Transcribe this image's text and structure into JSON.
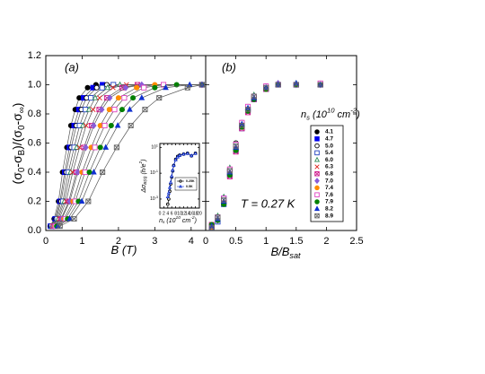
{
  "chart_data": [
    {
      "type": "line",
      "panel_label": "(a)",
      "x_label": [
        "B (T)"
      ],
      "y_label": [
        "(σ",
        {
          "sub": "0"
        },
        "-σ",
        {
          "sub": "B"
        },
        ")/(σ",
        {
          "sub": "0"
        },
        "-σ",
        {
          "sub": "∞"
        },
        ")"
      ],
      "xlim": [
        0,
        4.4
      ],
      "xticks": [
        0,
        1,
        2,
        3,
        4
      ],
      "ylim": [
        0,
        1.2
      ],
      "yticks": [
        {
          "value": 0,
          "label": "0.0"
        },
        0.2,
        0.4,
        0.6,
        0.8,
        {
          "value": 1,
          "label": "1.0"
        },
        1.2
      ],
      "series": [
        {
          "name": "4.1",
          "color": "#000000",
          "marker": "filled-circle",
          "x": [
            0.12,
            0.23,
            0.35,
            0.46,
            0.58,
            0.69,
            0.81,
            0.92,
            1.15,
            1.38,
            4.3
          ],
          "values": [
            0.03,
            0.08,
            0.2,
            0.4,
            0.57,
            0.72,
            0.83,
            0.91,
            0.98,
            1.0,
            1.0
          ]
        },
        {
          "name": "4.7",
          "color": "#0000ee",
          "marker": "filled-square",
          "x": [
            0.13,
            0.26,
            0.39,
            0.52,
            0.65,
            0.78,
            0.91,
            1.04,
            1.3,
            1.56,
            4.3
          ],
          "values": [
            0.03,
            0.08,
            0.2,
            0.4,
            0.57,
            0.72,
            0.83,
            0.91,
            0.98,
            1.0,
            1.0
          ]
        },
        {
          "name": "5.0",
          "color": "#000000",
          "marker": "open-circle",
          "x": [
            0.14,
            0.28,
            0.42,
            0.56,
            0.7,
            0.84,
            0.98,
            1.12,
            1.4,
            1.68,
            4.3
          ],
          "values": [
            0.03,
            0.08,
            0.2,
            0.4,
            0.57,
            0.72,
            0.83,
            0.91,
            0.98,
            1.0,
            1.0
          ]
        },
        {
          "name": "5.4",
          "color": "#1f3fbf",
          "marker": "open-square",
          "x": [
            0.16,
            0.31,
            0.47,
            0.62,
            0.78,
            0.93,
            1.09,
            1.24,
            1.55,
            1.86,
            4.3
          ],
          "values": [
            0.03,
            0.08,
            0.2,
            0.4,
            0.57,
            0.72,
            0.83,
            0.91,
            0.98,
            1.0,
            1.0
          ]
        },
        {
          "name": "6.0",
          "color": "#2e8b57",
          "marker": "open-triangle",
          "x": [
            0.17,
            0.34,
            0.51,
            0.68,
            0.85,
            1.02,
            1.19,
            1.36,
            1.7,
            2.04,
            4.3
          ],
          "values": [
            0.03,
            0.08,
            0.2,
            0.4,
            0.57,
            0.72,
            0.83,
            0.91,
            0.98,
            1.0,
            1.0
          ]
        },
        {
          "name": "6.3",
          "color": "#e0201b",
          "marker": "cross",
          "x": [
            0.19,
            0.37,
            0.56,
            0.74,
            0.93,
            1.11,
            1.3,
            1.48,
            1.85,
            2.22,
            4.3
          ],
          "values": [
            0.03,
            0.08,
            0.2,
            0.4,
            0.57,
            0.72,
            0.83,
            0.91,
            0.98,
            1.0,
            1.0
          ]
        },
        {
          "name": "6.8",
          "color": "#d0208f",
          "marker": "crossed-square",
          "x": [
            0.21,
            0.42,
            0.63,
            0.84,
            1.05,
            1.26,
            1.47,
            1.68,
            2.1,
            2.52,
            4.3
          ],
          "values": [
            0.03,
            0.08,
            0.2,
            0.4,
            0.57,
            0.72,
            0.83,
            0.91,
            0.98,
            1.0,
            1.0
          ]
        },
        {
          "name": "7.0",
          "color": "#8a5cd8",
          "marker": "diamond",
          "x": [
            0.22,
            0.44,
            0.66,
            0.88,
            1.1,
            1.32,
            1.54,
            1.76,
            2.2,
            2.64,
            4.3
          ],
          "values": [
            0.03,
            0.08,
            0.2,
            0.4,
            0.57,
            0.72,
            0.83,
            0.91,
            0.98,
            1.0,
            1.0
          ]
        },
        {
          "name": "7.4",
          "color": "#ff8c00",
          "marker": "filled-circle",
          "x": [
            0.25,
            0.5,
            0.75,
            1.0,
            1.25,
            1.5,
            1.75,
            2.0,
            2.5,
            3.0,
            4.3
          ],
          "values": [
            0.03,
            0.08,
            0.2,
            0.4,
            0.57,
            0.72,
            0.83,
            0.91,
            0.98,
            1.0,
            1.0
          ]
        },
        {
          "name": "7.6",
          "color": "#e040c0",
          "marker": "open-square",
          "x": [
            0.27,
            0.54,
            0.81,
            1.08,
            1.35,
            1.62,
            1.89,
            2.16,
            2.7,
            3.24,
            4.3
          ],
          "values": [
            0.03,
            0.08,
            0.2,
            0.4,
            0.57,
            0.72,
            0.83,
            0.91,
            0.98,
            1.0,
            1.0
          ]
        },
        {
          "name": "7.9",
          "color": "#008000",
          "marker": "filled-circle",
          "x": [
            0.3,
            0.6,
            0.9,
            1.2,
            1.5,
            1.8,
            2.1,
            2.4,
            3.0,
            3.6,
            4.3
          ],
          "values": [
            0.03,
            0.08,
            0.2,
            0.4,
            0.57,
            0.72,
            0.83,
            0.91,
            0.98,
            1.0,
            1.0
          ]
        },
        {
          "name": "8.2",
          "color": "#1030d0",
          "marker": "filled-triangle",
          "x": [
            0.33,
            0.66,
            0.99,
            1.32,
            1.65,
            1.98,
            2.31,
            2.64,
            3.3,
            3.96,
            4.3
          ],
          "values": [
            0.03,
            0.08,
            0.2,
            0.4,
            0.57,
            0.72,
            0.83,
            0.91,
            0.98,
            1.0,
            1.0
          ]
        },
        {
          "name": "8.9",
          "color": "#666666",
          "marker": "crossed-square",
          "x": [
            0.39,
            0.78,
            1.17,
            1.56,
            1.95,
            2.34,
            2.73,
            3.12,
            3.9,
            4.3
          ],
          "values": [
            0.03,
            0.08,
            0.2,
            0.4,
            0.57,
            0.72,
            0.83,
            0.91,
            0.98,
            1.0
          ]
        }
      ]
    },
    {
      "type": "scatter",
      "panel_label": "(b)",
      "x_label": [
        "B/B",
        {
          "sub": "sat"
        }
      ],
      "annotation": "T = 0.27 K",
      "legend": "right",
      "legend_title": [
        "n",
        {
          "sub": "s"
        },
        "  (10",
        {
          "sup": "10"
        },
        " cm",
        {
          "sup": "-2"
        },
        ")"
      ],
      "xlim": [
        0,
        2.5
      ],
      "xticks": [
        0,
        0.5,
        1,
        1.5,
        2,
        2.5
      ],
      "ylim": [
        0,
        1.2
      ],
      "yticks": [
        0,
        0.2,
        0.4,
        0.6,
        0.8,
        1,
        1.2
      ],
      "ytick_labels": false,
      "x": [
        0.1,
        0.2,
        0.3,
        0.4,
        0.5,
        0.6,
        0.7,
        0.8,
        1.0,
        1.2,
        1.5,
        1.9
      ],
      "series": [
        {
          "name": "4.1",
          "color": "#000000",
          "marker": "filled-circle",
          "values": [
            0.02,
            0.07,
            0.19,
            0.41,
            0.58,
            0.73,
            0.84,
            0.92,
            0.98,
            1.0,
            1.0,
            1.0
          ]
        },
        {
          "name": "4.7",
          "color": "#0000ee",
          "marker": "filled-square",
          "values": [
            0.03,
            0.09,
            0.22,
            0.39,
            0.56,
            0.71,
            0.83,
            0.9,
            0.97,
            1.0,
            1.0,
            1.0
          ]
        },
        {
          "name": "5.0",
          "color": "#000000",
          "marker": "open-circle",
          "values": [
            0.04,
            0.08,
            0.2,
            0.42,
            0.6,
            0.74,
            0.85,
            0.92,
            0.99,
            1.0,
            1.0,
            1.01
          ]
        },
        {
          "name": "5.4",
          "color": "#1f3fbf",
          "marker": "open-square",
          "values": [
            0.02,
            0.06,
            0.18,
            0.38,
            0.55,
            0.7,
            0.82,
            0.9,
            0.98,
            1.0,
            1.0,
            1.0
          ]
        },
        {
          "name": "6.0",
          "color": "#2e8b57",
          "marker": "open-triangle",
          "values": [
            0.03,
            0.1,
            0.23,
            0.43,
            0.59,
            0.73,
            0.84,
            0.93,
            0.98,
            1.0,
            1.01,
            1.0
          ]
        },
        {
          "name": "6.3",
          "color": "#e0201b",
          "marker": "cross",
          "values": [
            0.03,
            0.08,
            0.21,
            0.4,
            0.57,
            0.72,
            0.83,
            0.91,
            0.98,
            1.0,
            1.0,
            1.01
          ]
        },
        {
          "name": "6.8",
          "color": "#d0208f",
          "marker": "crossed-square",
          "values": [
            0.04,
            0.09,
            0.19,
            0.37,
            0.54,
            0.7,
            0.81,
            0.9,
            0.97,
            1.0,
            1.0,
            1.0
          ]
        },
        {
          "name": "7.0",
          "color": "#8a5cd8",
          "marker": "diamond",
          "values": [
            0.03,
            0.07,
            0.21,
            0.41,
            0.58,
            0.72,
            0.84,
            0.92,
            0.98,
            1.01,
            1.0,
            1.0
          ]
        },
        {
          "name": "7.4",
          "color": "#ff8c00",
          "marker": "filled-circle",
          "values": [
            0.02,
            0.08,
            0.2,
            0.39,
            0.56,
            0.71,
            0.82,
            0.91,
            0.97,
            1.0,
            1.0,
            1.0
          ]
        },
        {
          "name": "7.6",
          "color": "#e040c0",
          "marker": "open-square",
          "values": [
            0.03,
            0.09,
            0.22,
            0.42,
            0.59,
            0.74,
            0.85,
            0.92,
            0.99,
            1.0,
            1.0,
            1.01
          ]
        },
        {
          "name": "7.9",
          "color": "#008000",
          "marker": "filled-circle",
          "values": [
            0.04,
            0.07,
            0.18,
            0.38,
            0.55,
            0.71,
            0.82,
            0.9,
            0.97,
            1.0,
            1.0,
            1.0
          ]
        },
        {
          "name": "8.2",
          "color": "#1030d0",
          "marker": "filled-triangle",
          "values": [
            0.03,
            0.08,
            0.2,
            0.4,
            0.57,
            0.73,
            0.84,
            0.91,
            0.98,
            1.0,
            1.01,
            1.0
          ]
        },
        {
          "name": "8.9",
          "color": "#666666",
          "marker": "crossed-square",
          "values": [
            0.02,
            0.09,
            0.21,
            0.41,
            0.58,
            0.72,
            0.83,
            0.92,
            0.98,
            1.0,
            1.0,
            1.0
          ]
        }
      ]
    },
    {
      "type": "line",
      "log_y": true,
      "legend": "lower right",
      "x_label": [
        "n",
        {
          "sub": "s"
        },
        "  (10",
        {
          "sup": "10"
        },
        " cm",
        {
          "sup": "-2"
        },
        ")"
      ],
      "y_label": [
        "Δσ",
        {
          "sub": "B(0)"
        },
        " (h/e",
        {
          "sup": "2"
        },
        ")"
      ],
      "xlim": [
        0,
        20
      ],
      "xticks": [
        0,
        2,
        4,
        6,
        8,
        10,
        12,
        14,
        16,
        18,
        20
      ],
      "ylim": [
        0.0002,
        20
      ],
      "yticks": [
        {
          "value": 10,
          "label": "10",
          "exponent": "1"
        },
        {
          "value": 0.1,
          "label": "10",
          "exponent": "-1"
        },
        {
          "value": 0.001,
          "label": "10",
          "exponent": "-3"
        }
      ],
      "series": [
        {
          "name": "0.25K",
          "color": "#000000",
          "marker": "open-circle",
          "x": [
            4,
            4.5,
            5,
            5.5,
            6,
            6.5,
            7,
            8,
            9,
            10,
            12,
            14,
            16,
            18
          ],
          "values": [
            0.0004,
            0.001,
            0.004,
            0.015,
            0.05,
            0.15,
            0.4,
            1.2,
            2,
            2.5,
            3,
            3.5,
            2.2,
            3.5
          ]
        },
        {
          "name": "0.5K",
          "color": "#1030d0",
          "marker": "open-triangle",
          "x": [
            4,
            4.5,
            5,
            5.5,
            6,
            6.5,
            7,
            8,
            9,
            10,
            12,
            14,
            16,
            18
          ],
          "values": [
            0.0015,
            0.003,
            0.008,
            0.02,
            0.06,
            0.17,
            0.4,
            1.1,
            1.8,
            2.4,
            3,
            3.4,
            2.3,
            3.4
          ]
        }
      ]
    }
  ]
}
